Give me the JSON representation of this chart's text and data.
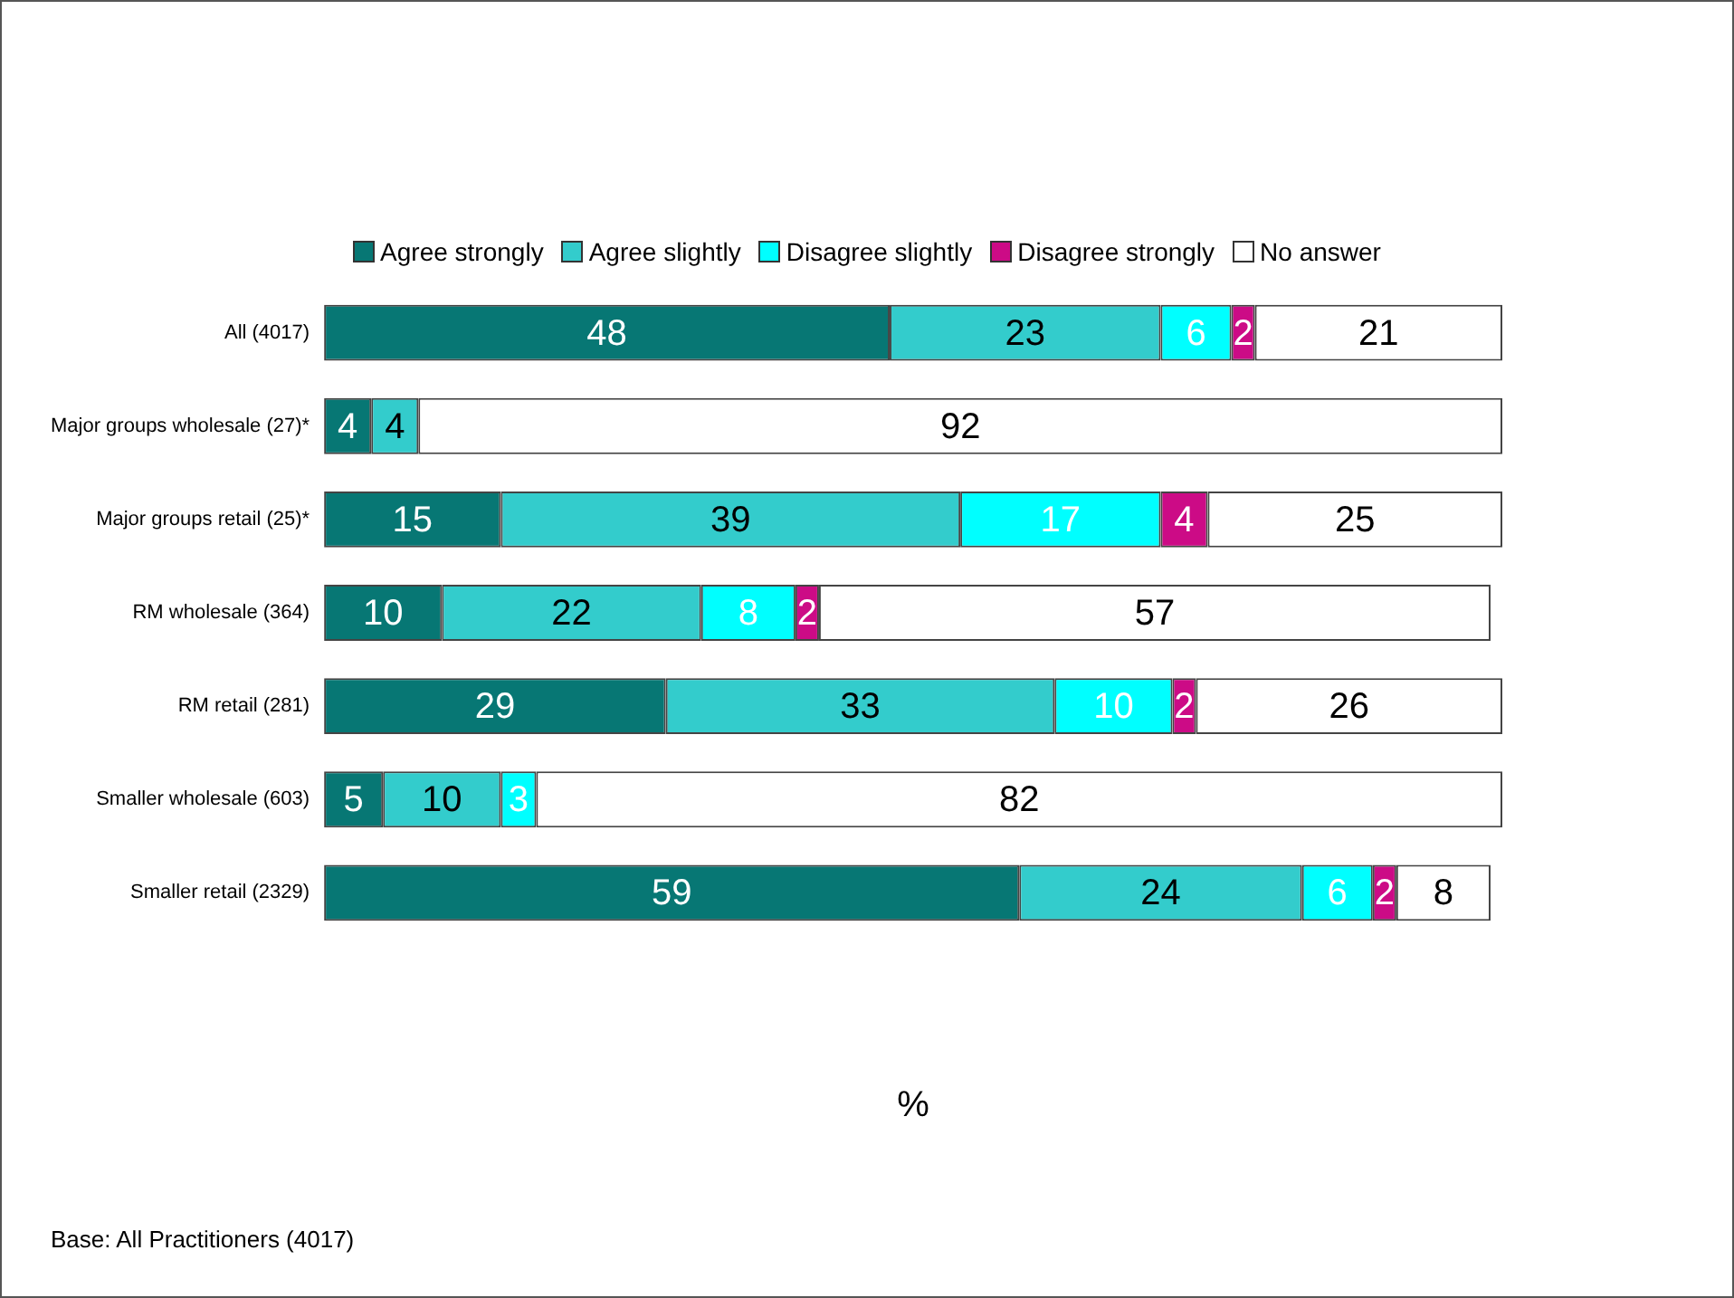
{
  "chart_data": {
    "type": "bar",
    "orientation": "horizontal",
    "stacked": true,
    "legend": "top",
    "grid": false,
    "tick_labels": "y",
    "data_labels": true,
    "xlabel": "%",
    "xlim": [
      0,
      100
    ],
    "annotations": [
      "Base: All Practitioners (4017)"
    ],
    "categories": [
      "All (4017)",
      "Major groups wholesale (27)*",
      "Major groups retail (25)*",
      "RM wholesale (364)",
      "RM retail (281)",
      "Smaller wholesale (603)",
      "Smaller retail (2329)"
    ],
    "series": [
      {
        "name": "Agree strongly",
        "color": "#077774",
        "values": [
          48,
          4,
          15,
          10,
          29,
          5,
          59
        ]
      },
      {
        "name": "Agree slightly",
        "color": "#33cccc",
        "values": [
          23,
          4,
          39,
          22,
          33,
          10,
          24
        ]
      },
      {
        "name": "Disagree slightly",
        "color": "#00ffff",
        "values": [
          6,
          null,
          17,
          8,
          10,
          3,
          6
        ]
      },
      {
        "name": "Disagree strongly",
        "color": "#cc0b86",
        "values": [
          2,
          null,
          4,
          2,
          2,
          null,
          2
        ]
      },
      {
        "name": "No answer",
        "color": "#ffffff",
        "values": [
          21,
          92,
          25,
          57,
          26,
          82,
          8
        ]
      }
    ]
  }
}
